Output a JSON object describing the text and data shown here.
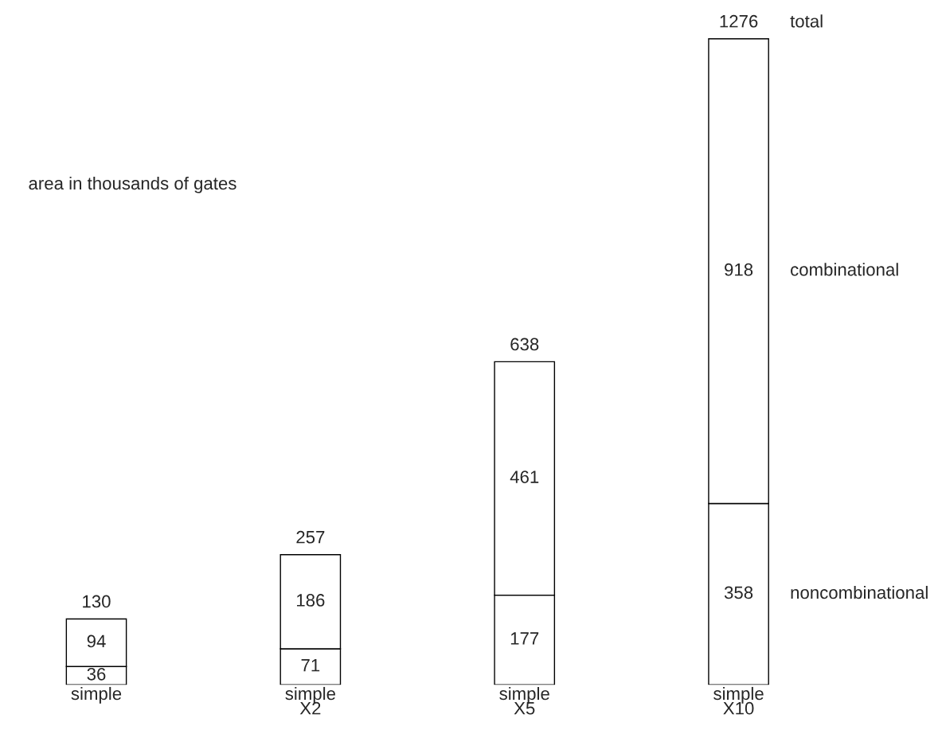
{
  "chart_data": {
    "type": "bar",
    "stacked": true,
    "data_labels": true,
    "legend": false,
    "grid": false,
    "categories": [
      "simple",
      "simple\nX2",
      "simple\nX5",
      "simple\nX10"
    ],
    "series": [
      {
        "name": "noncombinational",
        "color": "#ffffff",
        "values": [
          36,
          71,
          177,
          358
        ]
      },
      {
        "name": "combinational",
        "color": "#ffffff",
        "values": [
          94,
          186,
          461,
          918
        ]
      }
    ],
    "totals": [
      "130",
      "257",
      "638",
      "1276"
    ],
    "annotations": [
      "area in thousands of gates",
      "total"
    ]
  }
}
